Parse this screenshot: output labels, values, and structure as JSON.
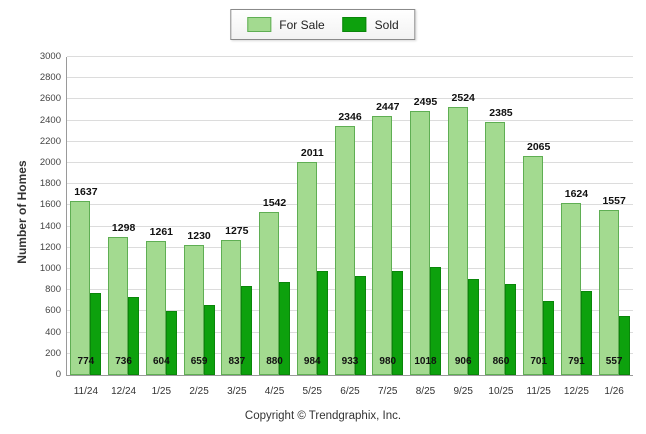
{
  "legend": {
    "for_sale": "For Sale",
    "sold": "Sold"
  },
  "ylabel": "Number of Homes",
  "footer": "Copyright © Trendgraphix, Inc.",
  "chart_data": {
    "type": "bar",
    "title": "",
    "categories": [
      "11/24",
      "12/24",
      "1/25",
      "2/25",
      "3/25",
      "4/25",
      "5/25",
      "6/25",
      "7/25",
      "8/25",
      "9/25",
      "10/25",
      "11/25",
      "12/25",
      "1/26"
    ],
    "series": [
      {
        "name": "For Sale",
        "color": "#a3da90",
        "border": "#5fae53",
        "values": [
          1637,
          1298,
          1261,
          1230,
          1275,
          1542,
          2011,
          2346,
          2447,
          2495,
          2524,
          2385,
          2065,
          1624,
          1557
        ]
      },
      {
        "name": "Sold",
        "color": "#0da10d",
        "border": "#0a860a",
        "values": [
          774,
          736,
          604,
          659,
          837,
          880,
          984,
          933,
          980,
          1018,
          906,
          860,
          701,
          791,
          557
        ]
      }
    ],
    "xlabel": "",
    "ylabel": "Number of Homes",
    "ylim": [
      0,
      3000
    ],
    "ytick_step": 200,
    "grid": true,
    "legend_position": "top-center"
  }
}
